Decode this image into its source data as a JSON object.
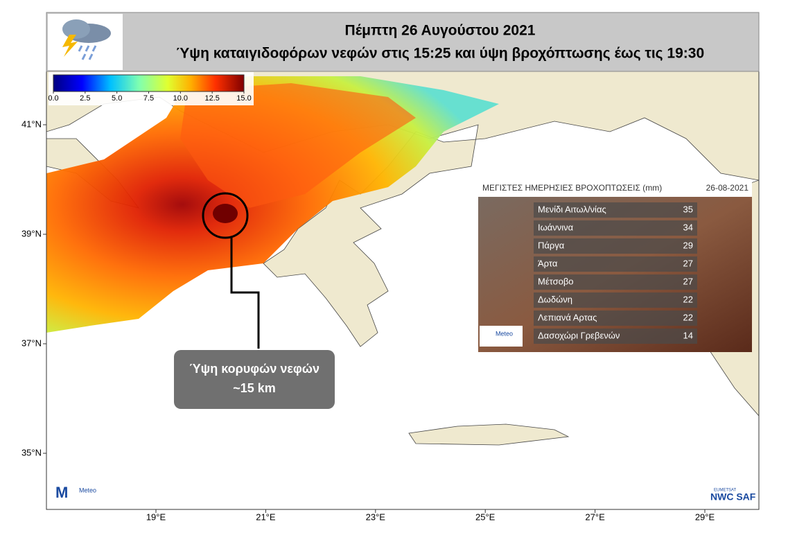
{
  "header": {
    "title_line1": "Πέμπτη 26 Αυγούστου 2021",
    "title_line2": "Ύψη καταιγιδοφόρων νεφών στις 15:25 και ύψη βροχόπτωσης έως τις 19:30"
  },
  "colorbar": {
    "range": [
      0,
      15
    ],
    "ticks": [
      {
        "value": 0,
        "label": "0.0"
      },
      {
        "value": 2.5,
        "label": "2.5"
      },
      {
        "value": 5,
        "label": "5.0"
      },
      {
        "value": 7.5,
        "label": "7.5"
      },
      {
        "value": 10,
        "label": "10.0"
      },
      {
        "value": 12.5,
        "label": "12.5"
      },
      {
        "value": 15,
        "label": "15.0"
      }
    ]
  },
  "lat_ticks": [
    {
      "value": 41,
      "label": "41°N"
    },
    {
      "value": 39,
      "label": "39°N"
    },
    {
      "value": 37,
      "label": "37°N"
    },
    {
      "value": 35,
      "label": "35°N"
    }
  ],
  "lon_ticks": [
    {
      "value": 19,
      "label": "19°E"
    },
    {
      "value": 21,
      "label": "21°E"
    },
    {
      "value": 23,
      "label": "23°E"
    },
    {
      "value": 25,
      "label": "25°E"
    },
    {
      "value": 27,
      "label": "27°E"
    },
    {
      "value": 29,
      "label": "29°E"
    }
  ],
  "annotation": {
    "line1": "Ύψη κορυφών νεφών",
    "line2": "~15 km"
  },
  "table": {
    "title": "ΜΕΓΙΣΤΕΣ ΗΜΕΡΗΣΙΕΣ ΒΡΟΧΟΠΤΩΣΕΙΣ (mm)",
    "date": "26-08-2021",
    "rows": [
      [
        "Μενίδι Αιτωλ/νίας",
        35
      ],
      [
        "Ιωάννινα",
        34
      ],
      [
        "Πάργα",
        29
      ],
      [
        "Άρτα",
        27
      ],
      [
        "Μέτσοβο",
        27
      ],
      [
        "Δωδώνη",
        22
      ],
      [
        "Λεπιανά Αρτας",
        22
      ],
      [
        "Δασοχώρι Γρεβενών",
        14
      ]
    ]
  },
  "logos": {
    "meteo": "Meteo",
    "eumetsat": "EUMETSAT",
    "nwcsaf": "NWC SAF"
  }
}
